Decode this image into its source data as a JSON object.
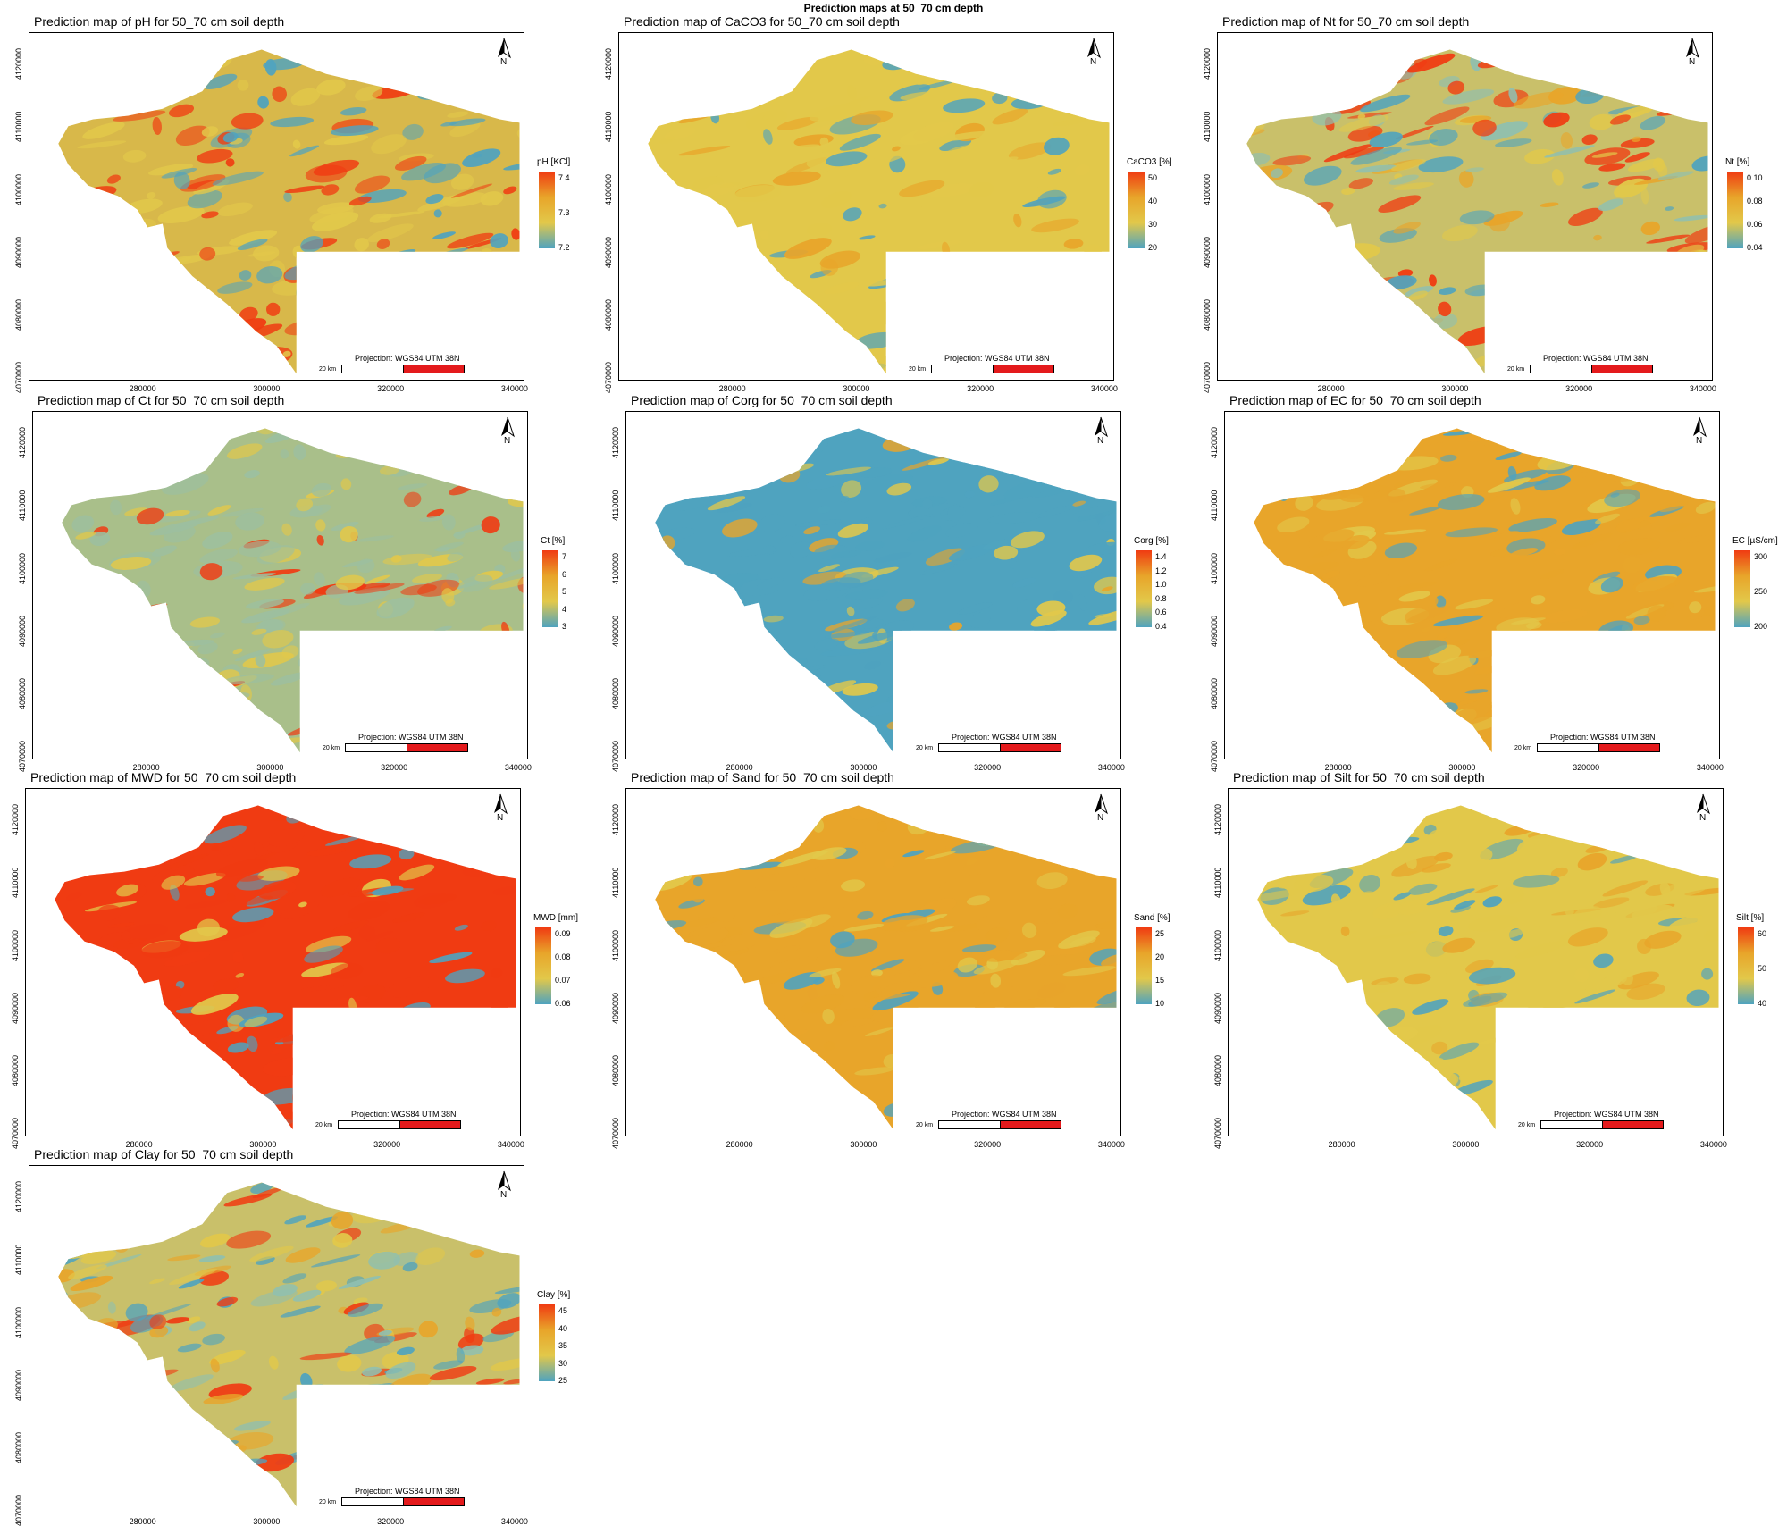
{
  "main_title": "Prediction maps at 50_70 cm depth",
  "projection_label": "Projection: WGS84 UTM 38N",
  "scale_label": "20 km",
  "north_label": "N",
  "x_ticks": [
    "280000",
    "300000",
    "320000",
    "340000"
  ],
  "y_ticks": [
    "4070000",
    "4080000",
    "4090000",
    "4100000",
    "4110000",
    "4120000"
  ],
  "colors": {
    "low": "#4fa3bf",
    "mid": "#e2c84a",
    "high": "#f03b12",
    "scale_red": "#e41a1c"
  },
  "maps": [
    {
      "title": "Prediction map of pH for 50_70 cm soil depth",
      "legend_title": "pH [KCl]",
      "legend_ticks": [
        "7.4",
        "7.3",
        "7.2"
      ],
      "dominant": "mixed-high"
    },
    {
      "title": "Prediction map of CaCO3 for 50_70 cm soil depth",
      "legend_title": "CaCO3 [%]",
      "legend_ticks": [
        "50",
        "40",
        "30",
        "20"
      ],
      "dominant": "mid"
    },
    {
      "title": "Prediction map of Nt for 50_70 cm soil depth",
      "legend_title": "Nt [%]",
      "legend_ticks": [
        "0.10",
        "0.08",
        "0.06",
        "0.04"
      ],
      "dominant": "mixed"
    },
    {
      "title": "Prediction map of Ct for 50_70 cm soil depth",
      "legend_title": "Ct [%]",
      "legend_ticks": [
        "7",
        "6",
        "5",
        "4",
        "3"
      ],
      "dominant": "low-mid"
    },
    {
      "title": "Prediction map of Corg for 50_70 cm soil depth",
      "legend_title": "Corg [%]",
      "legend_ticks": [
        "1.4",
        "1.2",
        "1.0",
        "0.8",
        "0.6",
        "0.4"
      ],
      "dominant": "low"
    },
    {
      "title": "Prediction map of EC for 50_70 cm soil depth",
      "legend_title": "EC [µS/cm]",
      "legend_ticks": [
        "300",
        "250",
        "200"
      ],
      "dominant": "mid-high"
    },
    {
      "title": "Prediction map of MWD for 50_70 cm soil depth",
      "legend_title": "MWD [mm]",
      "legend_ticks": [
        "0.09",
        "0.08",
        "0.07",
        "0.06"
      ],
      "dominant": "high"
    },
    {
      "title": "Prediction map of Sand for 50_70 cm soil depth",
      "legend_title": "Sand [%]",
      "legend_ticks": [
        "25",
        "20",
        "15",
        "10"
      ],
      "dominant": "mid-high"
    },
    {
      "title": "Prediction map of Silt for 50_70 cm soil depth",
      "legend_title": "Silt [%]",
      "legend_ticks": [
        "60",
        "50",
        "40"
      ],
      "dominant": "mid"
    },
    {
      "title": "Prediction map of Clay for 50_70 cm soil depth",
      "legend_title": "Clay [%]",
      "legend_ticks": [
        "45",
        "40",
        "35",
        "30",
        "25"
      ],
      "dominant": "mixed"
    }
  ]
}
